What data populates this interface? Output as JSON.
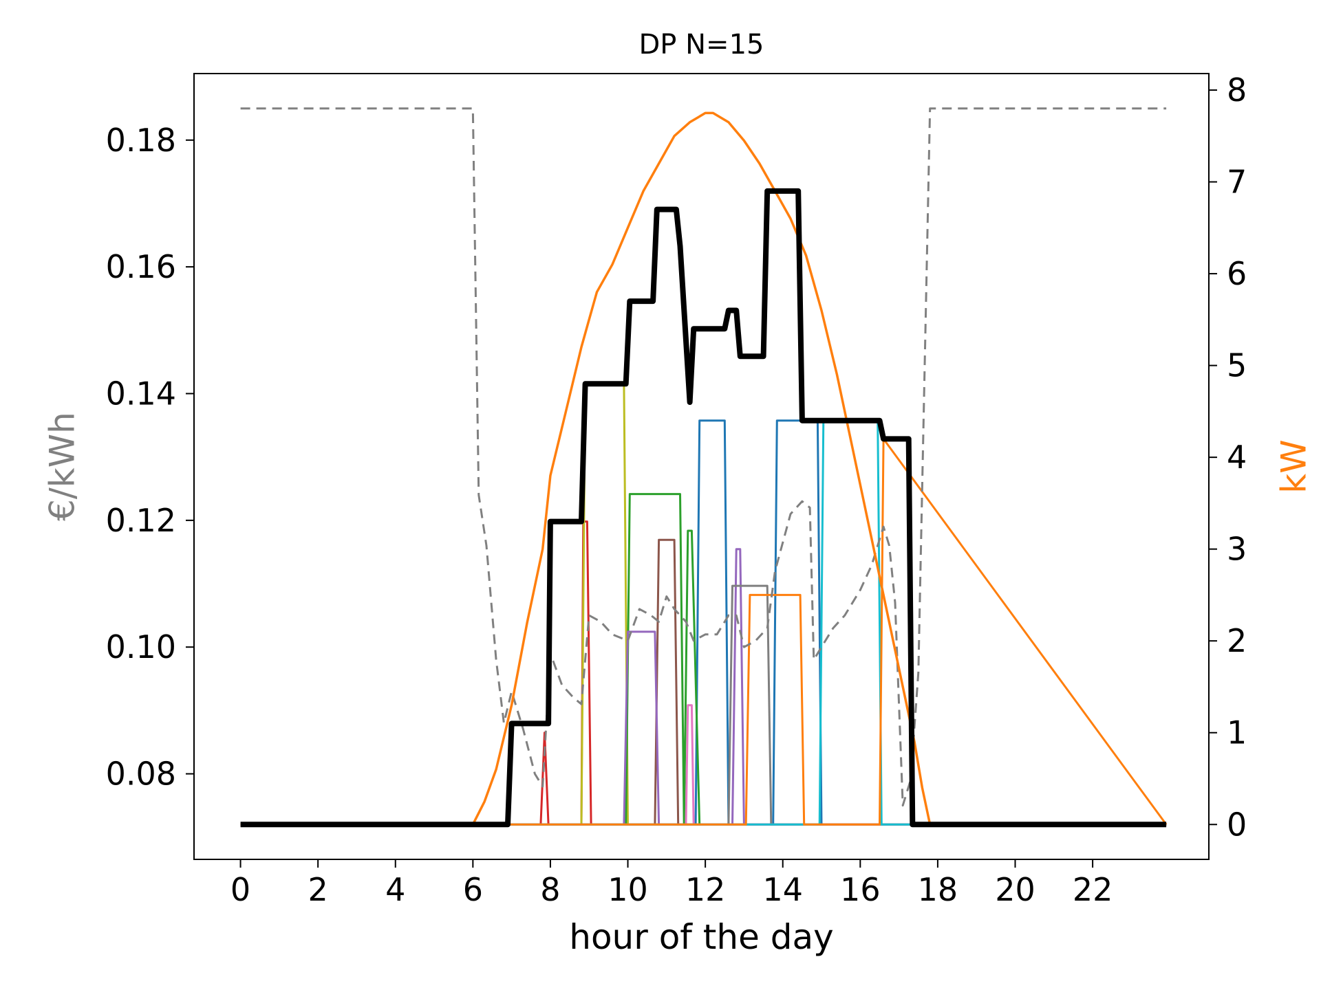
{
  "chart_data": {
    "type": "line",
    "title": "DP N=15",
    "xlabel": "hour of the day",
    "ylabel_left": "€/kWh",
    "ylabel_right": "kW",
    "xlim": [
      -1.2,
      25.0
    ],
    "ylim_left": [
      0.0665,
      0.1905
    ],
    "ylim_right": [
      -0.38,
      8.18
    ],
    "x_ticks": [
      0,
      2,
      4,
      6,
      8,
      10,
      12,
      14,
      16,
      18,
      20,
      22
    ],
    "y_left_ticks": [
      0.08,
      0.1,
      0.12,
      0.14,
      0.16,
      0.18
    ],
    "y_left_tick_labels": [
      "0.08",
      "0.10",
      "0.12",
      "0.14",
      "0.16",
      "0.18"
    ],
    "y_right_ticks": [
      0,
      1,
      2,
      3,
      4,
      5,
      6,
      7,
      8
    ],
    "grid": false,
    "colors": {
      "price": "#808080",
      "pv": "#ff7f0e",
      "total": "#000000",
      "axis_left_label": "#808080",
      "axis_right_label": "#ff7f0e"
    },
    "series": [
      {
        "axis": "right",
        "color": "#1f77b4",
        "width": 3,
        "x": [
          0,
          11.75,
          11.85,
          12.5,
          12.6,
          13.75,
          13.85,
          14.9,
          15.0,
          23.9
        ],
        "y": [
          0,
          0,
          4.4,
          4.4,
          0,
          0,
          4.4,
          4.4,
          0,
          0
        ]
      },
      {
        "axis": "right",
        "color": "#d62728",
        "width": 3,
        "x": [
          0,
          7.75,
          7.85,
          7.95,
          8.8,
          8.85,
          8.95,
          9.05,
          23.9
        ],
        "y": [
          0,
          0,
          1,
          0,
          0,
          3.3,
          3.3,
          0,
          0
        ]
      },
      {
        "axis": "right",
        "color": "#bcbd22",
        "width": 3,
        "x": [
          0,
          8.8,
          8.9,
          9.9,
          10.0,
          23.9
        ],
        "y": [
          0,
          0,
          4.8,
          4.8,
          0,
          0
        ]
      },
      {
        "axis": "right",
        "color": "#2ca02c",
        "width": 3,
        "x": [
          0,
          9.95,
          10.05,
          11.35,
          11.45,
          11.55,
          11.65,
          11.85,
          11.95,
          23.9
        ],
        "y": [
          0,
          0,
          3.6,
          3.6,
          0,
          3.2,
          3.2,
          0,
          0,
          0
        ]
      },
      {
        "axis": "right",
        "color": "#8c564b",
        "width": 3,
        "x": [
          0,
          10.7,
          10.8,
          11.2,
          11.3,
          23.9
        ],
        "y": [
          0,
          0,
          3.1,
          3.1,
          0,
          0
        ]
      },
      {
        "axis": "right",
        "color": "#9467bd",
        "width": 3,
        "x": [
          0,
          9.9,
          10.0,
          10.7,
          10.8,
          12.7,
          12.8,
          12.9,
          13.0,
          23.9
        ],
        "y": [
          0,
          0,
          2.1,
          2.1,
          0,
          0,
          3.0,
          3.0,
          0,
          0
        ]
      },
      {
        "axis": "right",
        "color": "#e377c2",
        "width": 3,
        "x": [
          0,
          11.5,
          11.55,
          11.65,
          11.7,
          23.9
        ],
        "y": [
          0,
          0,
          1.3,
          1.3,
          0,
          0
        ]
      },
      {
        "axis": "right",
        "color": "#7f7f7f",
        "width": 3,
        "x": [
          0,
          12.6,
          12.7,
          13.6,
          13.7,
          23.9
        ],
        "y": [
          0,
          0,
          2.6,
          2.6,
          0,
          0
        ]
      },
      {
        "axis": "right",
        "color": "#17becf",
        "width": 3,
        "x": [
          0,
          14.95,
          15.05,
          16.45,
          16.55,
          23.9
        ],
        "y": [
          0,
          0,
          4.4,
          4.4,
          0,
          0
        ]
      },
      {
        "axis": "right",
        "color": "#ff7f0e",
        "width": 3,
        "x": [
          0,
          13.05,
          13.15,
          14.45,
          14.55,
          16.5,
          16.6,
          23.9
        ],
        "y": [
          0,
          0,
          2.5,
          2.5,
          0,
          0,
          4.2,
          0
        ]
      },
      {
        "axis": "left",
        "color": "#808080",
        "width": 3,
        "dash": "14 9",
        "x": [
          0,
          6.0,
          6.15,
          6.35,
          6.6,
          6.8,
          7.0,
          7.3,
          7.6,
          7.8,
          8.0,
          8.3,
          8.6,
          8.8,
          9.0,
          9.3,
          9.6,
          10.0,
          10.3,
          10.6,
          10.8,
          11.0,
          11.2,
          11.5,
          11.7,
          12.0,
          12.3,
          12.6,
          12.8,
          13.0,
          13.3,
          13.6,
          13.8,
          14.2,
          14.5,
          14.7,
          14.8,
          15.0,
          15.3,
          15.6,
          16.0,
          16.3,
          16.6,
          16.75,
          16.9,
          17.1,
          17.3,
          17.5,
          17.8,
          23.9
        ],
        "y": [
          0.185,
          0.185,
          0.124,
          0.116,
          0.098,
          0.088,
          0.093,
          0.087,
          0.08,
          0.078,
          0.099,
          0.094,
          0.092,
          0.091,
          0.105,
          0.104,
          0.102,
          0.101,
          0.106,
          0.105,
          0.104,
          0.108,
          0.106,
          0.104,
          0.101,
          0.102,
          0.102,
          0.105,
          0.105,
          0.1,
          0.101,
          0.103,
          0.112,
          0.121,
          0.123,
          0.122,
          0.098,
          0.1,
          0.103,
          0.105,
          0.109,
          0.113,
          0.119,
          0.116,
          0.107,
          0.075,
          0.079,
          0.096,
          0.185,
          0.185
        ]
      },
      {
        "axis": "right",
        "color": "#ff7f0e",
        "width": 3.5,
        "x": [
          0,
          6.0,
          6.3,
          6.6,
          7.0,
          7.4,
          7.8,
          8.0,
          8.4,
          8.8,
          9.0,
          9.2,
          9.6,
          10.0,
          10.4,
          10.8,
          11.2,
          11.6,
          11.8,
          12.0,
          12.2,
          12.6,
          13.0,
          13.4,
          13.8,
          14.2,
          14.6,
          15.0,
          15.4,
          15.8,
          16.2,
          16.6,
          17.0,
          17.4,
          17.6,
          17.8,
          23.9
        ],
        "y": [
          0,
          0,
          0.25,
          0.6,
          1.3,
          2.2,
          3.0,
          3.8,
          4.5,
          5.2,
          5.5,
          5.8,
          6.1,
          6.5,
          6.9,
          7.2,
          7.5,
          7.65,
          7.7,
          7.75,
          7.75,
          7.65,
          7.45,
          7.2,
          6.9,
          6.6,
          6.2,
          5.6,
          4.9,
          4.1,
          3.3,
          2.5,
          1.7,
          0.9,
          0.4,
          0,
          0
        ]
      },
      {
        "axis": "right",
        "color": "#000000",
        "width": 8,
        "x": [
          0,
          6.9,
          7.0,
          7.95,
          8.0,
          8.8,
          8.9,
          9.95,
          10.05,
          10.65,
          10.75,
          11.25,
          11.35,
          11.6,
          11.7,
          12.5,
          12.6,
          12.8,
          12.9,
          13.5,
          13.6,
          14.4,
          14.5,
          16.5,
          16.6,
          17.25,
          17.35,
          17.55,
          23.9
        ],
        "y": [
          0,
          0,
          1.1,
          1.1,
          3.3,
          3.3,
          4.8,
          4.8,
          5.7,
          5.7,
          6.7,
          6.7,
          6.3,
          4.6,
          5.4,
          5.4,
          5.6,
          5.6,
          5.1,
          5.1,
          6.9,
          6.9,
          4.4,
          4.4,
          4.2,
          4.2,
          0,
          0,
          0
        ]
      }
    ]
  }
}
